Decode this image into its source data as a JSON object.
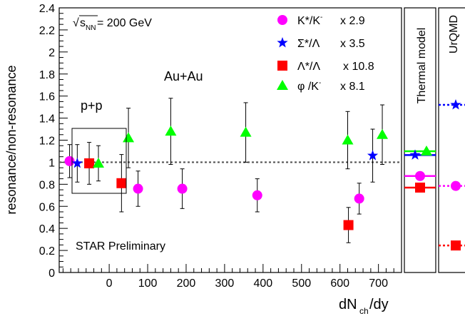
{
  "chart_data": {
    "type": "scatter",
    "ylabel": "resonance/non-resonance",
    "xlabel_main": "dN",
    "xlabel_sub": "ch",
    "xlabel_tail": " /dy",
    "ylim": [
      0,
      2.4
    ],
    "xlim": [
      -130,
      760
    ],
    "y_ticks": [
      "0",
      "0.2",
      "0.4",
      "0.6",
      "0.8",
      "1",
      "1.2",
      "1.4",
      "1.6",
      "1.8",
      "2",
      "2.2",
      "2.4"
    ],
    "x_ticks": [
      "0",
      "100",
      "200",
      "300",
      "400",
      "500",
      "600",
      "700"
    ],
    "reference_line": 1.0,
    "annotations": {
      "energy_prefix": "√",
      "energy_s": "s",
      "energy_sub": "NN",
      "energy_tail": " = 200 GeV",
      "system_pp": "p+p",
      "system_auau": "Au+Au",
      "preliminary": "STAR Preliminary"
    },
    "legend": [
      {
        "label": "K*/K",
        "sup": "-",
        "factor": "x 2.9",
        "marker": "circle",
        "color": "#ff00ff"
      },
      {
        "label": "Σ*/Λ",
        "sup": "",
        "factor": "x 3.5",
        "marker": "star",
        "color": "#0000ff"
      },
      {
        "label": "Λ*/Λ",
        "sup": "",
        "factor": "x 10.8",
        "marker": "square",
        "color": "#ff0000"
      },
      {
        "label": "φ /K",
        "sup": "-",
        "factor": "x 8.1",
        "marker": "triangle",
        "color": "#00ff00"
      }
    ],
    "series": [
      {
        "name": "K*/K-",
        "marker": "circle",
        "color": "#ff00ff",
        "points": [
          {
            "x": -103,
            "y": 1.01,
            "err": 0.15
          },
          {
            "x": 75,
            "y": 0.76,
            "err": 0.16
          },
          {
            "x": 190,
            "y": 0.76,
            "err": 0.18
          },
          {
            "x": 385,
            "y": 0.7,
            "err": 0.15
          },
          {
            "x": 650,
            "y": 0.67,
            "err": 0.14
          }
        ]
      },
      {
        "name": "Σ*/Λ",
        "marker": "star",
        "color": "#0000ff",
        "points": [
          {
            "x": -83,
            "y": 0.99,
            "err": 0.17
          },
          {
            "x": 685,
            "y": 1.06,
            "err": 0.24
          }
        ]
      },
      {
        "name": "Λ*/Λ",
        "marker": "square",
        "color": "#ff0000",
        "points": [
          {
            "x": -52,
            "y": 0.99,
            "err": 0.19
          },
          {
            "x": 32,
            "y": 0.81,
            "err": 0.26
          },
          {
            "x": 622,
            "y": 0.43,
            "err": 0.16
          }
        ]
      },
      {
        "name": "φ/K-",
        "marker": "triangle",
        "color": "#00ff00",
        "points": [
          {
            "x": -28,
            "y": 0.99,
            "err": 0.16
          },
          {
            "x": 50,
            "y": 1.22,
            "err": 0.27
          },
          {
            "x": 160,
            "y": 1.28,
            "err": 0.3
          },
          {
            "x": 355,
            "y": 1.27,
            "err": 0.27
          },
          {
            "x": 620,
            "y": 1.2,
            "err": 0.26
          },
          {
            "x": 710,
            "y": 1.25,
            "err": 0.27
          }
        ]
      }
    ],
    "thermal_model": {
      "title": "Thermal model",
      "lines": [
        {
          "y": 1.1,
          "color": "#00ff00",
          "marker": "triangle"
        },
        {
          "y": 1.065,
          "color": "#0000ff",
          "marker": "star"
        },
        {
          "y": 0.875,
          "color": "#ff00ff",
          "marker": "circle"
        },
        {
          "y": 0.77,
          "color": "#ff0000",
          "marker": "square"
        }
      ]
    },
    "urqmd": {
      "title": "UrQMD",
      "lines": [
        {
          "y": 1.52,
          "color": "#0000ff",
          "marker": "star"
        },
        {
          "y": 0.785,
          "color": "#ff00ff",
          "marker": "circle"
        },
        {
          "y": 0.245,
          "color": "#ff0000",
          "marker": "square"
        }
      ]
    }
  }
}
